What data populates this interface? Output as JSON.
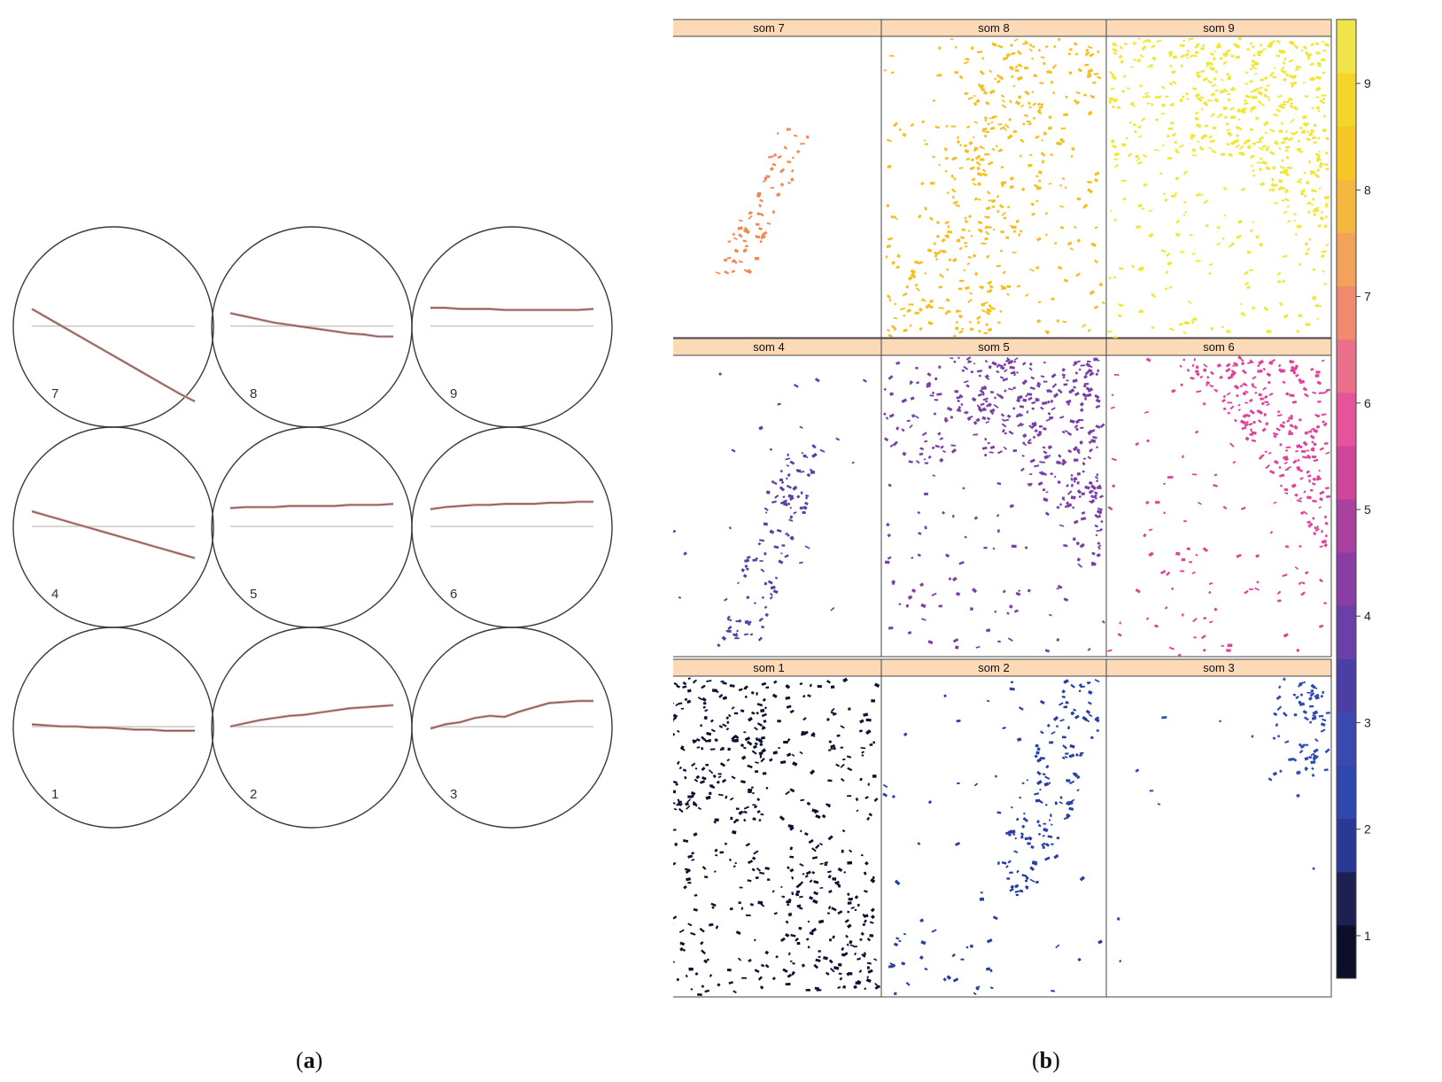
{
  "figure": {
    "caption_a_open": "(",
    "caption_a_letter": "a",
    "caption_a_close": ")",
    "caption_b_open": "(",
    "caption_b_letter": "b",
    "caption_b_close": ")"
  },
  "chart_data": [
    {
      "type": "line",
      "panel": "a",
      "layout": "3x3 grid of circular SOM node codebook plots",
      "nodes": [
        {
          "label": "7",
          "profile": [
            0.92,
            0.84,
            0.76,
            0.68,
            0.6,
            0.52,
            0.44,
            0.36,
            0.28,
            0.2,
            0.12,
            0.05
          ]
        },
        {
          "label": "8",
          "profile": [
            0.88,
            0.85,
            0.82,
            0.79,
            0.77,
            0.75,
            0.73,
            0.71,
            0.69,
            0.68,
            0.66,
            0.66
          ]
        },
        {
          "label": "9",
          "profile": [
            0.93,
            0.93,
            0.92,
            0.92,
            0.92,
            0.91,
            0.91,
            0.91,
            0.91,
            0.91,
            0.91,
            0.92
          ]
        },
        {
          "label": "4",
          "profile": [
            0.9,
            0.86,
            0.82,
            0.78,
            0.74,
            0.7,
            0.66,
            0.62,
            0.58,
            0.54,
            0.5,
            0.46
          ]
        },
        {
          "label": "5",
          "profile": [
            0.93,
            0.94,
            0.94,
            0.94,
            0.95,
            0.95,
            0.95,
            0.95,
            0.96,
            0.96,
            0.96,
            0.97
          ]
        },
        {
          "label": "6",
          "profile": [
            0.92,
            0.94,
            0.95,
            0.96,
            0.96,
            0.97,
            0.97,
            0.97,
            0.98,
            0.98,
            0.99,
            0.99
          ]
        },
        {
          "label": "1",
          "profile": [
            0.78,
            0.77,
            0.76,
            0.76,
            0.75,
            0.75,
            0.74,
            0.73,
            0.73,
            0.72,
            0.72,
            0.72
          ]
        },
        {
          "label": "2",
          "profile": [
            0.76,
            0.79,
            0.82,
            0.84,
            0.86,
            0.87,
            0.89,
            0.91,
            0.93,
            0.94,
            0.95,
            0.96
          ]
        },
        {
          "label": "3",
          "profile": [
            0.74,
            0.78,
            0.8,
            0.84,
            0.86,
            0.85,
            0.9,
            0.94,
            0.98,
            0.99,
            1.0,
            1.0
          ]
        }
      ]
    },
    {
      "type": "scatter",
      "panel": "b",
      "layout": "3x3 trellis of spatial point maps",
      "panels": [
        {
          "title": "som 7",
          "level": 7,
          "color": "#f08a52"
        },
        {
          "title": "som 8",
          "level": 8,
          "color": "#f5bf1a"
        },
        {
          "title": "som 9",
          "level": 9,
          "color": "#f0e830"
        },
        {
          "title": "som 4",
          "level": 4,
          "color": "#5b3fa6"
        },
        {
          "title": "som 5",
          "level": 5,
          "color": "#7a3ea8"
        },
        {
          "title": "som 6",
          "level": 6,
          "color": "#e2419a"
        },
        {
          "title": "som 1",
          "level": 1,
          "color": "#0b1030"
        },
        {
          "title": "som 2",
          "level": 2,
          "color": "#273fa5"
        },
        {
          "title": "som 3",
          "level": 3,
          "color": "#2d4ab5"
        }
      ],
      "colorbar": {
        "ticks": [
          "1",
          "2",
          "3",
          "4",
          "5",
          "6",
          "7",
          "8",
          "9"
        ],
        "range": [
          0.6,
          9.6
        ],
        "colors": [
          "#0d0e2a",
          "#1d2152",
          "#2a3a94",
          "#3047ae",
          "#3a4ab0",
          "#4b3fa6",
          "#6b3fa8",
          "#8a3ea3",
          "#a8419f",
          "#cd4699",
          "#e5549a",
          "#ea6f8a",
          "#f08a6c",
          "#f3a25a",
          "#f5b83e",
          "#f5c626",
          "#f4d62a",
          "#f0e54a"
        ],
        "header_color": "#fcd9b7"
      }
    }
  ]
}
